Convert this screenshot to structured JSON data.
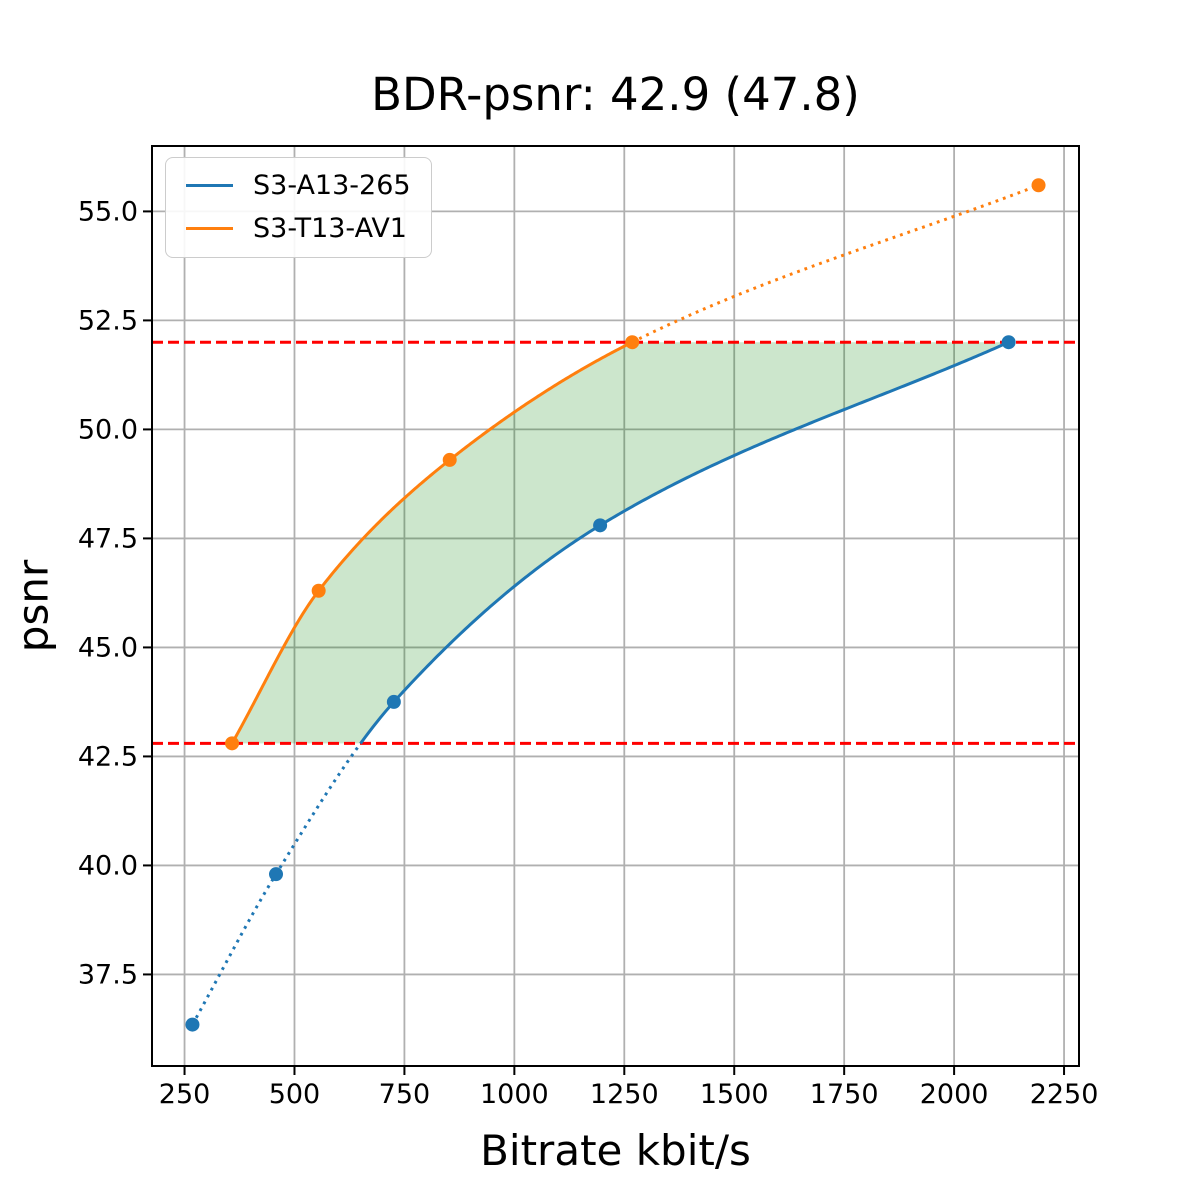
{
  "chart_data": {
    "type": "line",
    "title": "BDR-psnr: 42.9 (47.8)",
    "xlabel": "Bitrate kbit/s",
    "ylabel": "psnr",
    "bdr_values": {
      "primary": 42.9,
      "secondary": 47.8
    },
    "xlim": [
      176,
      2284
    ],
    "ylim": [
      35.4,
      56.5
    ],
    "grid": true,
    "legend_position": "upper left",
    "x_ticks": [
      250,
      500,
      750,
      1000,
      1250,
      1500,
      1750,
      2000,
      2250
    ],
    "x_tick_labels": [
      "250",
      "500",
      "750",
      "1000",
      "1250",
      "1500",
      "1750",
      "2000",
      "2250"
    ],
    "y_ticks": [
      37.5,
      40.0,
      42.5,
      45.0,
      47.5,
      50.0,
      52.5,
      55.0
    ],
    "y_tick_labels": [
      "37.5",
      "40.0",
      "42.5",
      "45.0",
      "47.5",
      "50.0",
      "52.5",
      "55.0"
    ],
    "series": [
      {
        "name": "S3-T13-AV1",
        "color": "#ff7f0e",
        "x": [
          358,
          555,
          853,
          1268,
          2192
        ],
        "y": [
          42.8,
          46.3,
          49.3,
          52.0,
          55.6
        ]
      },
      {
        "name": "S3-A13-265",
        "color": "#1f77b4",
        "x": [
          268,
          458,
          726,
          1195,
          2124
        ],
        "y": [
          36.35,
          39.8,
          43.75,
          47.8,
          52.0
        ]
      }
    ],
    "legend_order": [
      "S3-A13-265",
      "S3-T13-AV1"
    ],
    "overlap_lines": {
      "low": 42.8,
      "high": 52.0,
      "color": "#ff0000",
      "style": "dashed"
    },
    "shaded_region": {
      "between_upper": "S3-T13-AV1",
      "between_lower": "S3-A13-265",
      "color": "#008000",
      "alpha": 0.2,
      "psnr_range": [
        42.8,
        52.0
      ]
    },
    "style": {
      "grid_color": "#b0b0b0",
      "spine_color": "#000000",
      "background": "#ffffff",
      "line_width": 3,
      "marker_radius": 7
    }
  }
}
